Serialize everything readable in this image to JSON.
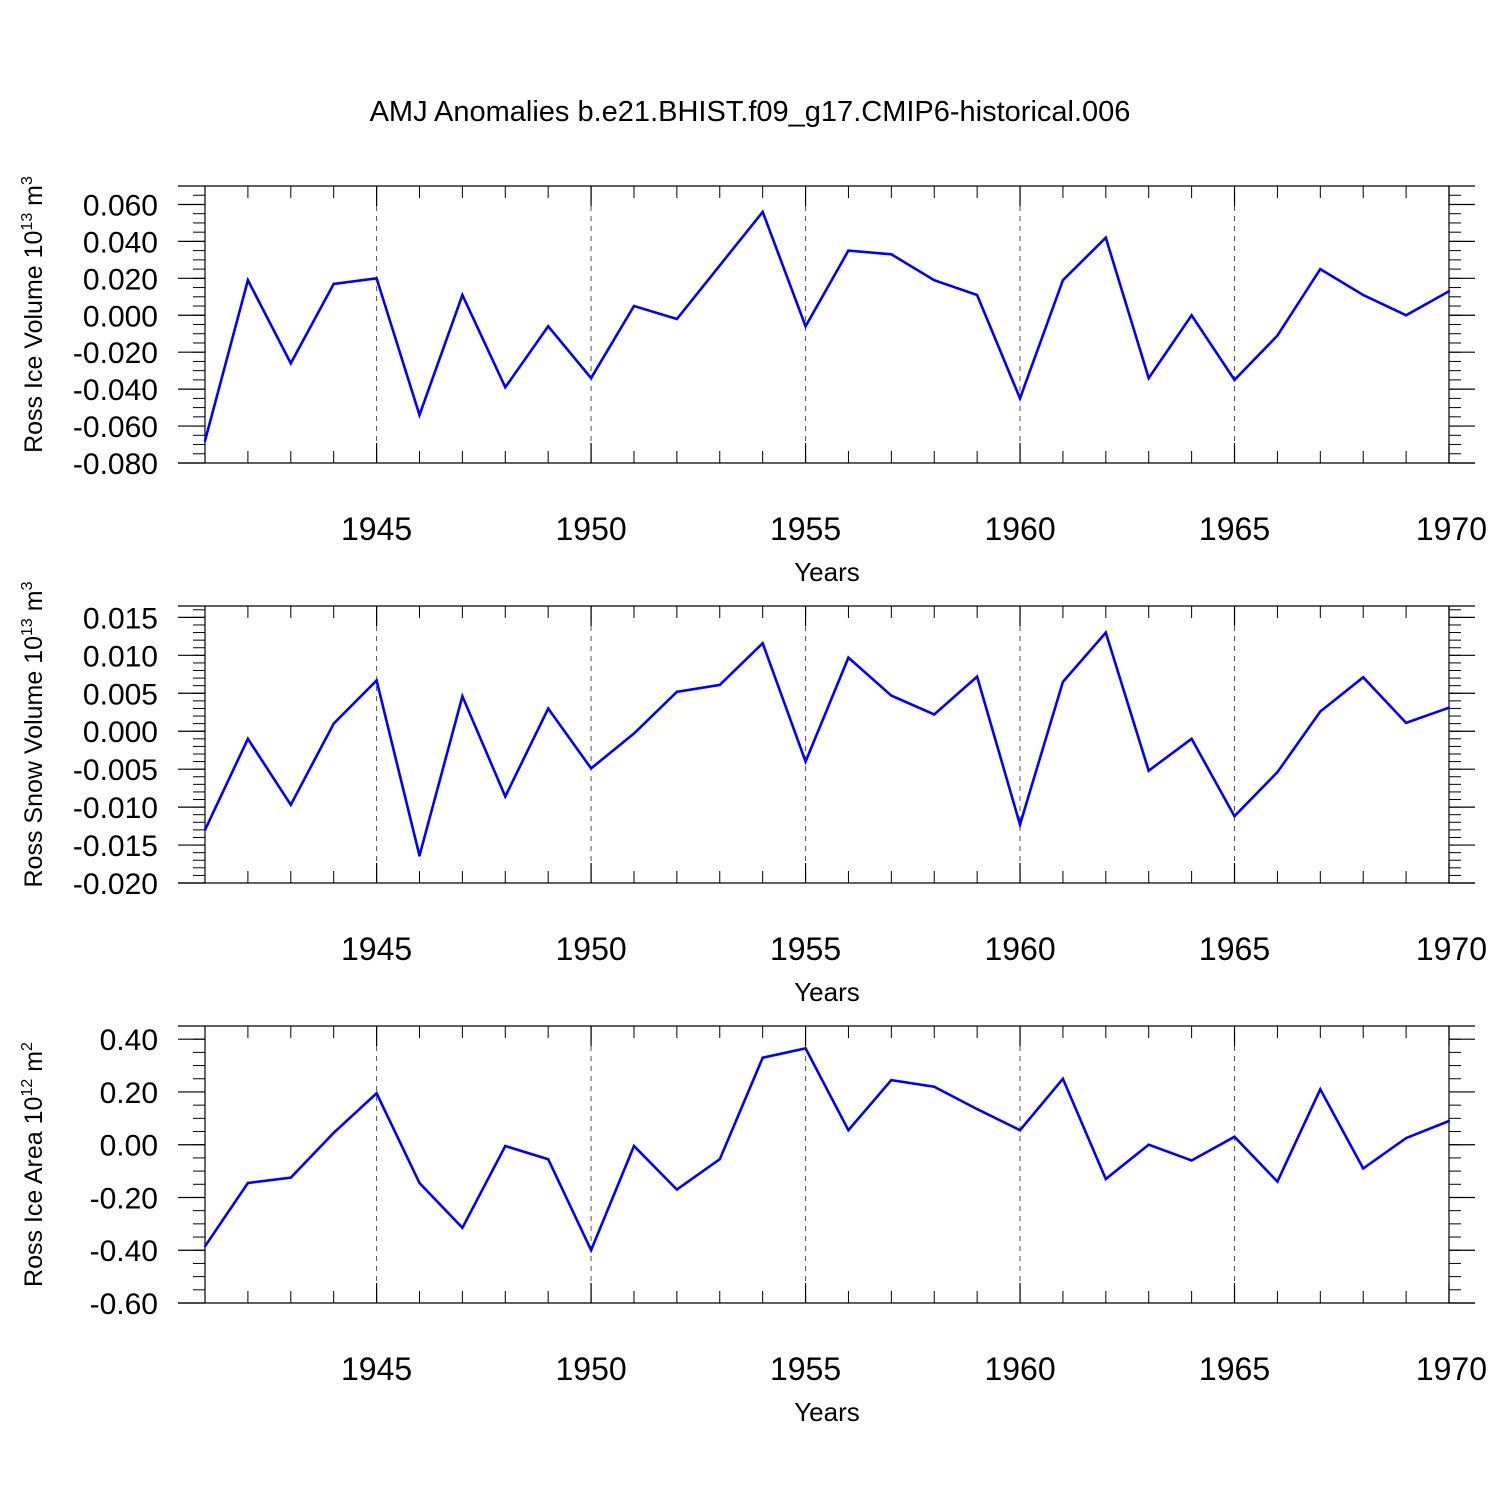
{
  "title": "AMJ Anomalies b.e21.BHIST.f09_g17.CMIP6-historical.006",
  "chart_data": [
    {
      "type": "line",
      "ylabel_main": "Ross Ice Volume 10",
      "ylabel_sup": "13",
      "ylabel_unit": " m",
      "ylabel_unit_sup": "3",
      "xlabel": "Years",
      "x": [
        1941,
        1942,
        1943,
        1944,
        1945,
        1946,
        1947,
        1948,
        1949,
        1950,
        1951,
        1952,
        1953,
        1954,
        1955,
        1956,
        1957,
        1958,
        1959,
        1960,
        1961,
        1962,
        1963,
        1964,
        1965,
        1966,
        1967,
        1968,
        1969,
        1970
      ],
      "values": [
        -0.068,
        0.019,
        -0.026,
        0.017,
        0.02,
        -0.054,
        0.011,
        -0.039,
        -0.006,
        -0.034,
        0.005,
        -0.002,
        0.027,
        0.056,
        -0.006,
        0.035,
        0.033,
        0.019,
        0.011,
        -0.045,
        0.019,
        0.042,
        -0.034,
        0.0,
        -0.035,
        -0.011,
        0.025,
        0.011,
        0.0,
        0.013
      ],
      "xlim": [
        1941,
        1970
      ],
      "ylim": [
        -0.08,
        0.07
      ],
      "yticks": [
        -0.08,
        -0.06,
        -0.04,
        -0.02,
        0.0,
        0.02,
        0.04,
        0.06
      ],
      "ytick_labels": [
        "-0.080",
        "-0.060",
        "-0.040",
        "-0.020",
        "0.000",
        "0.020",
        "0.040",
        "0.060"
      ],
      "yminor_step": 0.005,
      "xticks": [
        1945,
        1950,
        1955,
        1960,
        1965,
        1970
      ],
      "xtick_labels": [
        "1945",
        "1950",
        "1955",
        "1960",
        "1965",
        "1970"
      ],
      "color": "#0000ff"
    },
    {
      "type": "line",
      "ylabel_main": "Ross Snow Volume 10",
      "ylabel_sup": "13",
      "ylabel_unit": " m",
      "ylabel_unit_sup": "3",
      "xlabel": "Years",
      "x": [
        1941,
        1942,
        1943,
        1944,
        1945,
        1946,
        1947,
        1948,
        1949,
        1950,
        1951,
        1952,
        1953,
        1954,
        1955,
        1956,
        1957,
        1958,
        1959,
        1960,
        1961,
        1962,
        1963,
        1964,
        1965,
        1966,
        1967,
        1968,
        1969,
        1970
      ],
      "values": [
        -0.013,
        -0.001,
        -0.0097,
        0.001,
        0.0067,
        -0.0164,
        0.0046,
        -0.0086,
        0.003,
        -0.0049,
        -0.0003,
        0.0052,
        0.0061,
        0.0116,
        -0.004,
        0.0097,
        0.0047,
        0.0022,
        0.0072,
        -0.0123,
        0.0065,
        0.013,
        -0.0052,
        -0.001,
        -0.0112,
        -0.0054,
        0.0026,
        0.0071,
        0.0011,
        0.0031
      ],
      "xlim": [
        1941,
        1970
      ],
      "ylim": [
        -0.02,
        0.0165
      ],
      "yticks": [
        -0.02,
        -0.015,
        -0.01,
        -0.005,
        0.0,
        0.005,
        0.01,
        0.015
      ],
      "ytick_labels": [
        "-0.020",
        "-0.015",
        "-0.010",
        "-0.005",
        "0.000",
        "0.005",
        "0.010",
        "0.015"
      ],
      "yminor_step": 0.001,
      "xticks": [
        1945,
        1950,
        1955,
        1960,
        1965,
        1970
      ],
      "xtick_labels": [
        "1945",
        "1950",
        "1955",
        "1960",
        "1965",
        "1970"
      ],
      "color": "#0000ff"
    },
    {
      "type": "line",
      "ylabel_main": "Ross Ice Area 10",
      "ylabel_sup": "12",
      "ylabel_unit": " m",
      "ylabel_unit_sup": "2",
      "xlabel": "Years",
      "x": [
        1941,
        1942,
        1943,
        1944,
        1945,
        1946,
        1947,
        1948,
        1949,
        1950,
        1951,
        1952,
        1953,
        1954,
        1955,
        1956,
        1957,
        1958,
        1959,
        1960,
        1961,
        1962,
        1963,
        1964,
        1965,
        1966,
        1967,
        1968,
        1969,
        1970
      ],
      "values": [
        -0.385,
        -0.145,
        -0.125,
        0.045,
        0.195,
        -0.145,
        -0.315,
        -0.005,
        -0.055,
        -0.4,
        -0.005,
        -0.17,
        -0.055,
        0.33,
        0.365,
        0.055,
        0.245,
        0.22,
        0.135,
        0.055,
        0.25,
        -0.13,
        0.0,
        -0.06,
        0.03,
        -0.14,
        0.21,
        -0.09,
        0.025,
        0.09
      ],
      "xlim": [
        1941,
        1970
      ],
      "ylim": [
        -0.6,
        0.45
      ],
      "yticks": [
        -0.6,
        -0.4,
        -0.2,
        0.0,
        0.2,
        0.4
      ],
      "ytick_labels": [
        "-0.60",
        "-0.40",
        "-0.20",
        "0.00",
        "0.20",
        "0.40"
      ],
      "yminor_step": 0.05,
      "xticks": [
        1945,
        1950,
        1955,
        1960,
        1965,
        1970
      ],
      "xtick_labels": [
        "1945",
        "1950",
        "1955",
        "1960",
        "1965",
        "1970"
      ],
      "color": "#0000ff"
    }
  ]
}
